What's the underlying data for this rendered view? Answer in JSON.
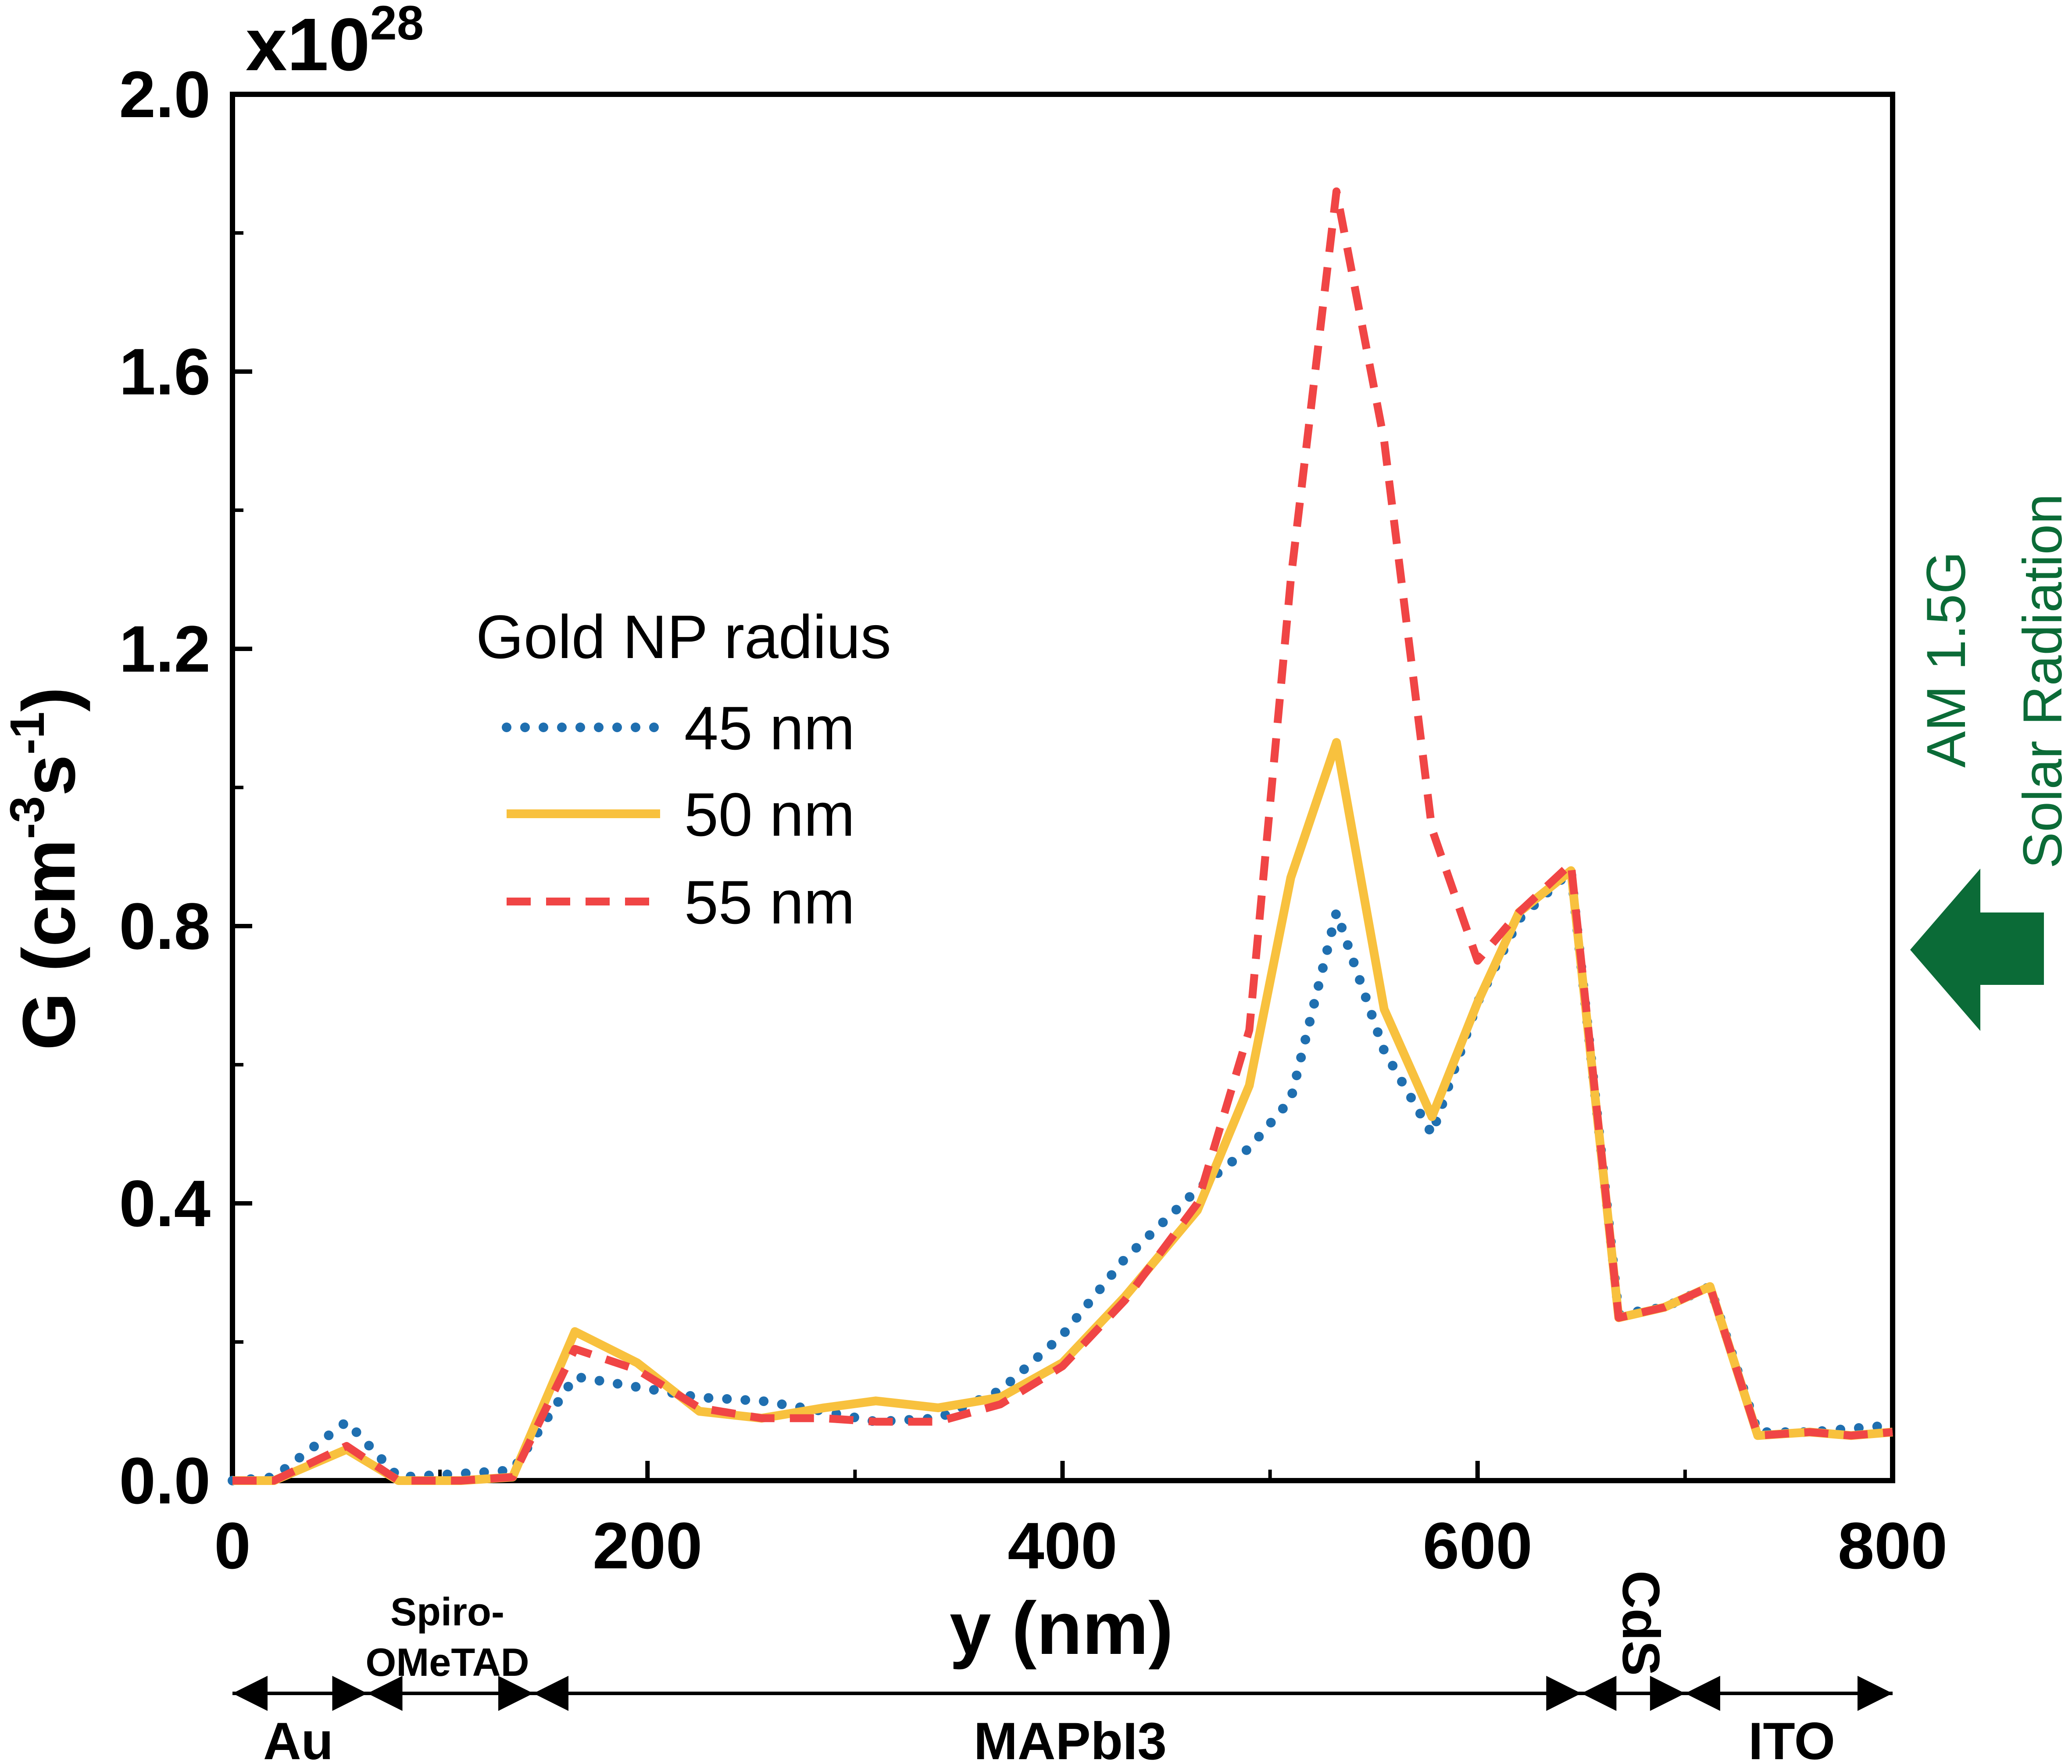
{
  "chart_data": {
    "type": "line",
    "title": "",
    "xlabel": "y (nm)",
    "ylabel_main": "G (cm",
    "ylabel_sup1": "-3",
    "ylabel_mid": "s",
    "ylabel_sup2": "-1",
    "ylabel_end": ")",
    "y_multiplier_base": "x10",
    "y_multiplier_exp": "28",
    "xlim": [
      0,
      800
    ],
    "ylim": [
      0,
      2.0
    ],
    "x_ticks": [
      0,
      200,
      400,
      600,
      800
    ],
    "x_tick_labels": [
      "0",
      "200",
      "400",
      "600",
      "800"
    ],
    "y_ticks": [
      0,
      0.4,
      0.8,
      1.2,
      1.6,
      2.0
    ],
    "y_tick_labels": [
      "0.0",
      "0.4",
      "0.8",
      "1.2",
      "1.6",
      "2.0"
    ],
    "legend_title": "Gold NP radius",
    "legend_position": "center-left",
    "series": [
      {
        "name": "45 nm",
        "color": "#1f6fb0",
        "style": "dotted",
        "x": [
          0,
          20,
          55,
          80,
          110,
          135,
          165,
          195,
          225,
          255,
          285,
          310,
          340,
          370,
          400,
          430,
          465,
          490,
          510,
          532,
          555,
          578,
          600,
          620,
          645,
          668,
          690,
          712,
          735,
          760,
          780,
          800
        ],
        "y": [
          0,
          0.005,
          0.085,
          0.005,
          0.01,
          0.015,
          0.15,
          0.135,
          0.12,
          0.115,
          0.1,
          0.085,
          0.09,
          0.13,
          0.21,
          0.32,
          0.42,
          0.48,
          0.55,
          0.82,
          0.62,
          0.5,
          0.69,
          0.81,
          0.88,
          0.24,
          0.25,
          0.28,
          0.07,
          0.07,
          0.075,
          0.08
        ]
      },
      {
        "name": "50 nm",
        "color": "#f8c13e",
        "style": "solid",
        "x": [
          0,
          20,
          55,
          80,
          110,
          135,
          165,
          195,
          225,
          255,
          285,
          310,
          340,
          370,
          400,
          430,
          465,
          490,
          510,
          532,
          555,
          578,
          600,
          620,
          645,
          668,
          690,
          712,
          735,
          760,
          780,
          800
        ],
        "y": [
          0,
          0,
          0.045,
          0,
          0,
          0.005,
          0.215,
          0.17,
          0.1,
          0.09,
          0.105,
          0.115,
          0.105,
          0.12,
          0.17,
          0.265,
          0.39,
          0.57,
          0.87,
          1.065,
          0.68,
          0.525,
          0.69,
          0.82,
          0.88,
          0.235,
          0.25,
          0.28,
          0.065,
          0.07,
          0.065,
          0.07
        ]
      },
      {
        "name": "55 nm",
        "color": "#f04545",
        "style": "dashed",
        "x": [
          0,
          20,
          55,
          80,
          110,
          135,
          165,
          195,
          225,
          255,
          285,
          310,
          340,
          370,
          400,
          430,
          465,
          490,
          510,
          532,
          555,
          578,
          600,
          620,
          645,
          668,
          690,
          712,
          735,
          760,
          780,
          800
        ],
        "y": [
          0,
          0,
          0.05,
          0,
          0,
          0.005,
          0.19,
          0.16,
          0.105,
          0.09,
          0.09,
          0.085,
          0.085,
          0.11,
          0.165,
          0.26,
          0.4,
          0.65,
          1.3,
          1.86,
          1.5,
          0.94,
          0.75,
          0.82,
          0.89,
          0.235,
          0.25,
          0.28,
          0.065,
          0.07,
          0.065,
          0.07
        ]
      }
    ],
    "layers": [
      {
        "name": "Au",
        "start": 0,
        "end": 65
      },
      {
        "name_line1": "Spiro-",
        "name_line2": "OMeTAD",
        "start": 65,
        "end": 145
      },
      {
        "name": "MAPbI3",
        "start": 145,
        "end": 650
      },
      {
        "name": "CdS",
        "start": 650,
        "end": 700
      },
      {
        "name": "ITO",
        "start": 700,
        "end": 800
      }
    ],
    "annotation": {
      "line1": "AM 1.5G",
      "line2": "Solar Radiation",
      "color": "#0b6b37"
    }
  }
}
